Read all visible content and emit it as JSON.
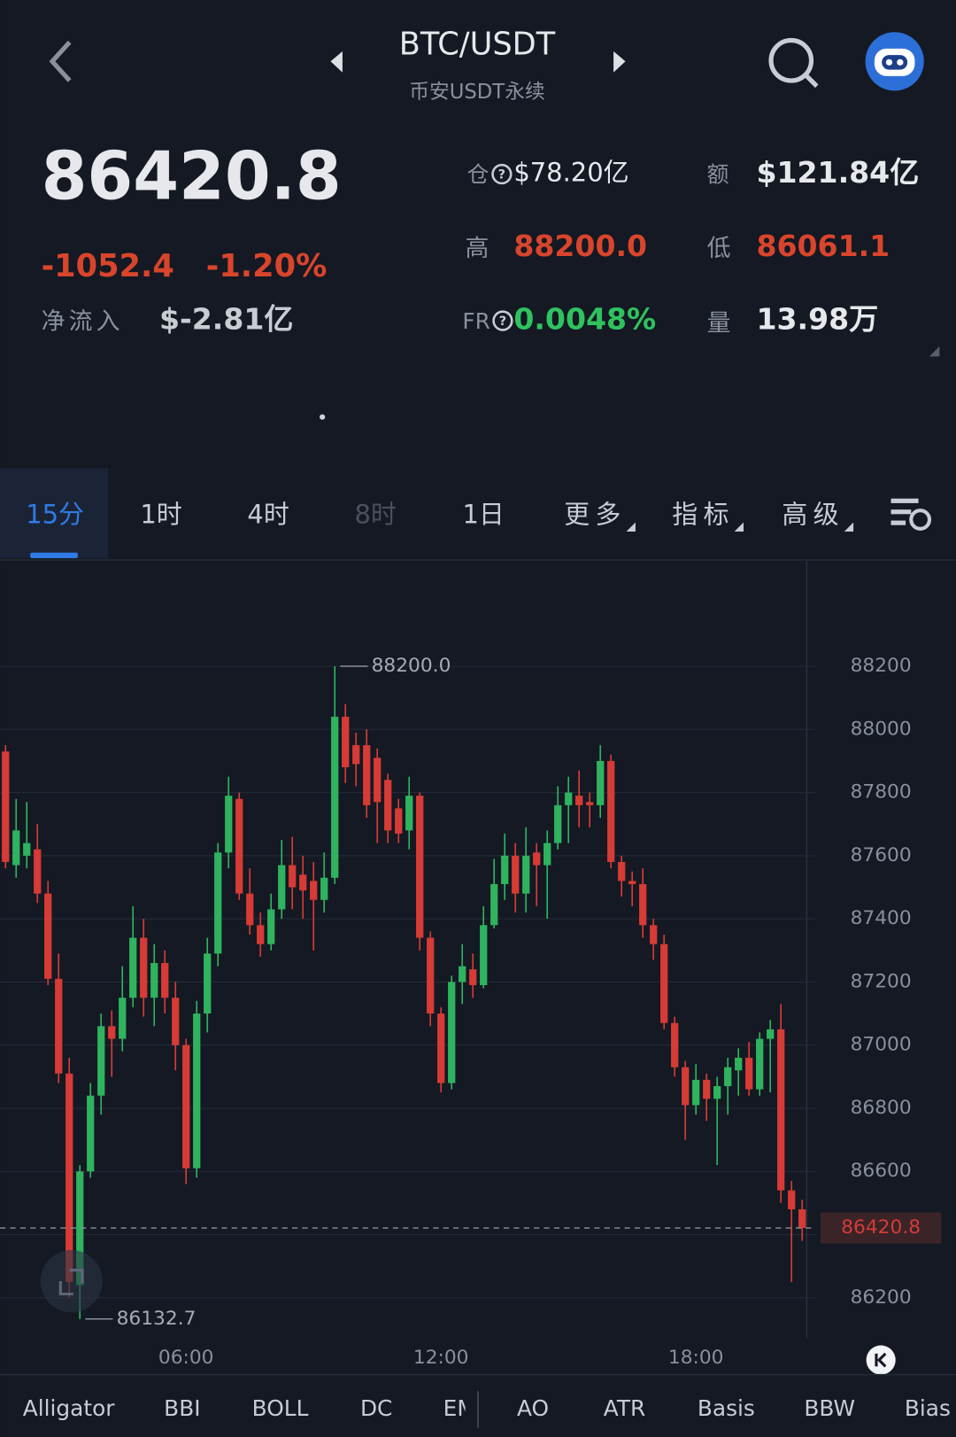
{
  "header": {
    "pair": "BTC/USDT",
    "market": "币安USDT永续"
  },
  "stats": {
    "price": "86420.8",
    "change": "-1052.4",
    "change_pct": "-1.20%",
    "net_inflow_label": "净流入",
    "net_inflow": "$-2.81亿",
    "oi_label": "仓",
    "oi": "$78.20亿",
    "turnover_label": "额",
    "turnover": "$121.84亿",
    "high_label": "高",
    "high": "88200.0",
    "low_label": "低",
    "low": "86061.1",
    "fr_label": "FR",
    "fr": "0.0048%",
    "volume_label": "量",
    "volume": "13.98万"
  },
  "tabs": [
    "15分",
    "1时",
    "4时",
    "8时",
    "1日",
    "更多",
    "指标",
    "高级"
  ],
  "indicators": [
    "Alligator",
    "BBI",
    "BOLL",
    "DC",
    "EMA",
    "AO",
    "ATR",
    "Basis",
    "BBW",
    "Bias"
  ],
  "chart_data": {
    "type": "candlestick",
    "categories": [
      null,
      null,
      null,
      null,
      null,
      null,
      null,
      null,
      null,
      null,
      null,
      null,
      null,
      null,
      null,
      null,
      null,
      "06:00",
      null,
      null,
      null,
      null,
      null,
      null,
      null,
      null,
      null,
      null,
      null,
      null,
      null,
      null,
      null,
      null,
      null,
      null,
      null,
      null,
      null,
      null,
      null,
      "12:00",
      null,
      null,
      null,
      null,
      null,
      null,
      null,
      null,
      null,
      null,
      null,
      null,
      null,
      null,
      null,
      null,
      null,
      null,
      null,
      null,
      null,
      null,
      null,
      "18:00",
      null,
      null,
      null,
      null,
      null,
      null,
      null,
      null,
      null,
      null
    ],
    "open": [
      87930,
      87570,
      87600,
      87620,
      87480,
      87210,
      86910,
      86240,
      86600,
      86840,
      87060,
      87020,
      87150,
      87340,
      87150,
      87260,
      87150,
      87000,
      86610,
      87100,
      87290,
      87610,
      87780,
      87480,
      87380,
      87320,
      87430,
      87570,
      87540,
      87520,
      87460,
      87530,
      88040,
      87950,
      87950,
      87910,
      87840,
      87750,
      87680,
      87790,
      87340,
      87100,
      86880,
      87200,
      87240,
      87190,
      87380,
      87510,
      87600,
      87480,
      87610,
      87570,
      87640,
      87760,
      87790,
      87770,
      87760,
      87900,
      87580,
      87520,
      87510,
      87380,
      87320,
      87070,
      86930,
      86810,
      86890,
      86830,
      86870,
      86920,
      86960,
      86860,
      87020,
      87050,
      86540,
      86480
    ],
    "high": [
      87950,
      87780,
      87770,
      87700,
      87520,
      87290,
      86960,
      86620,
      86880,
      87100,
      87110,
      87250,
      87440,
      87400,
      87320,
      87300,
      87200,
      87020,
      87140,
      87340,
      87640,
      87850,
      87800,
      87560,
      87420,
      87480,
      87650,
      87660,
      87600,
      87580,
      87610,
      88200,
      88080,
      87990,
      88000,
      87940,
      87860,
      87780,
      87850,
      87800,
      87360,
      87120,
      87220,
      87320,
      87290,
      87440,
      87590,
      87670,
      87640,
      87690,
      87640,
      87680,
      87820,
      87850,
      87870,
      87800,
      87950,
      87920,
      87600,
      87550,
      87560,
      87400,
      87350,
      87090,
      86950,
      86940,
      86910,
      86900,
      86960,
      86990,
      87010,
      87040,
      87080,
      87130,
      86570,
      86510
    ],
    "low": [
      87560,
      87530,
      87560,
      87450,
      87190,
      86880,
      86200,
      86132.7,
      86580,
      86780,
      86900,
      86980,
      87120,
      87090,
      87060,
      87100,
      86920,
      86560,
      86580,
      87040,
      87250,
      87560,
      87460,
      87350,
      87280,
      87300,
      87400,
      87430,
      87400,
      87300,
      87420,
      87510,
      87830,
      87820,
      87720,
      87640,
      87640,
      87640,
      87620,
      87300,
      87060,
      86850,
      86860,
      87130,
      87150,
      87180,
      87370,
      87460,
      87420,
      87420,
      87440,
      87400,
      87620,
      87640,
      87690,
      87690,
      87720,
      87560,
      87470,
      87440,
      87340,
      87270,
      87050,
      86900,
      86700,
      86780,
      86760,
      86620,
      86780,
      86840,
      86840,
      86840,
      86850,
      86500,
      86250,
      86380
    ],
    "close": [
      87580,
      87680,
      87640,
      87480,
      87210,
      86910,
      86250,
      86600,
      86840,
      87060,
      87020,
      87150,
      87340,
      87150,
      87260,
      87150,
      87000,
      86610,
      87100,
      87290,
      87610,
      87790,
      87480,
      87380,
      87320,
      87430,
      87570,
      87500,
      87490,
      87460,
      87530,
      88040,
      87880,
      87890,
      87760,
      87770,
      87680,
      87670,
      87790,
      87340,
      87100,
      86880,
      87200,
      87250,
      87190,
      87380,
      87510,
      87600,
      87480,
      87600,
      87570,
      87640,
      87760,
      87800,
      87760,
      87760,
      87900,
      87580,
      87520,
      87510,
      87380,
      87320,
      87070,
      86930,
      86810,
      86890,
      86830,
      86870,
      86930,
      86960,
      86860,
      87020,
      87050,
      86540,
      86480,
      86420.8
    ],
    "up_color": "#2fb35e",
    "down_color": "#d63b35",
    "ylim": [
      86072.3,
      88533.8
    ],
    "yticks": [
      86200,
      86400,
      86600,
      86800,
      87000,
      87200,
      87400,
      87600,
      87800,
      88000,
      88200
    ],
    "grid": true,
    "max_label": {
      "value": 88200,
      "label": "88200.0"
    },
    "min_label": 86132.7,
    "last_price": 86420.8
  }
}
